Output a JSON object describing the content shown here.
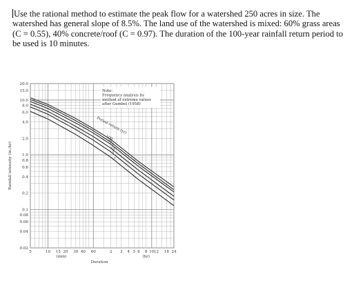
{
  "problem": {
    "text": "Use the rational method to estimate the peak flow for a watershed 250 acres in size. The watershed has general slope of 8.5%.  The land use of the watershed is mixed: 60% grass areas (C = 0.55), 40% concrete/roof (C = 0.97).  The duration of the 100-year rainfall return period to be used is 10 minutes."
  },
  "chart_data": {
    "type": "line",
    "ylabel": "Rainfall intensity (in./hr)",
    "xlabel": "Duration",
    "y_scale": "log",
    "x_scale": "log",
    "ylim": [
      0.02,
      20.0
    ],
    "xlim_min": [
      5,
      1440
    ],
    "grid": true,
    "y_ticks": [
      "20.0",
      "15.0",
      "10.0",
      "8.0",
      "6.0",
      "4.0",
      "2.0",
      "1.0",
      "0.8",
      "0.6",
      "0.4",
      "0.2",
      "0.1",
      "0.08",
      "0.06",
      "0.04",
      "0.02"
    ],
    "x_ticks_min": [
      "5",
      "10",
      "15",
      "20",
      "30",
      "40",
      "60"
    ],
    "x_ticks_hr": [
      "2",
      "3",
      "4",
      "5",
      "6",
      "8",
      "10",
      "12",
      "18",
      "24"
    ],
    "x_unit_min": "(min)",
    "x_unit_hr": "(hr)",
    "note": [
      "Note:",
      "Frequency analysis by",
      "method of extreme values",
      "after Gumbel (1958)"
    ],
    "curve_annotation": "Period return (yr)",
    "curve_labels": [
      "100",
      "50",
      "25",
      "10",
      "5",
      "2"
    ],
    "series": [
      {
        "name": "100",
        "x_min": [
          5,
          10,
          30,
          60,
          120,
          360,
          1440
        ],
        "values": [
          11.0,
          8.3,
          4.6,
          3.0,
          1.9,
          0.75,
          0.26
        ]
      },
      {
        "name": "50",
        "x_min": [
          5,
          10,
          30,
          60,
          120,
          360,
          1440
        ],
        "values": [
          10.2,
          7.7,
          4.2,
          2.75,
          1.7,
          0.68,
          0.23
        ]
      },
      {
        "name": "25",
        "x_min": [
          5,
          10,
          30,
          60,
          120,
          360,
          1440
        ],
        "values": [
          9.4,
          7.0,
          3.8,
          2.5,
          1.55,
          0.61,
          0.21
        ]
      },
      {
        "name": "10",
        "x_min": [
          5,
          10,
          30,
          60,
          120,
          360,
          1440
        ],
        "values": [
          8.4,
          6.2,
          3.3,
          2.15,
          1.32,
          0.52,
          0.175
        ]
      },
      {
        "name": "5",
        "x_min": [
          5,
          10,
          30,
          60,
          120,
          360,
          1440
        ],
        "values": [
          7.5,
          5.5,
          2.9,
          1.85,
          1.13,
          0.44,
          0.15
        ]
      },
      {
        "name": "2",
        "x_min": [
          5,
          10,
          30,
          60,
          120,
          360,
          1440
        ],
        "values": [
          6.2,
          4.5,
          2.35,
          1.48,
          0.9,
          0.35,
          0.118
        ]
      }
    ]
  }
}
